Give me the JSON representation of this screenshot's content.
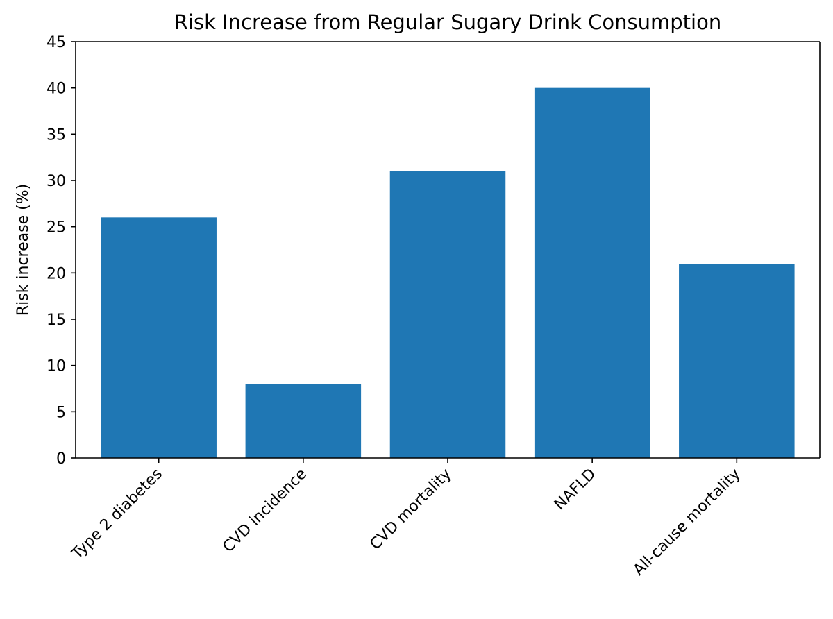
{
  "chart_data": {
    "type": "bar",
    "title": "Risk Increase from Regular Sugary Drink Consumption",
    "xlabel": "",
    "ylabel": "Risk increase (%)",
    "ylim": [
      0,
      45
    ],
    "yticks": [
      0,
      5,
      10,
      15,
      20,
      25,
      30,
      35,
      40,
      45
    ],
    "grid": false,
    "categories": [
      "Type 2 diabetes",
      "CVD incidence",
      "CVD mortality",
      "NAFLD",
      "All-cause mortality"
    ],
    "values": [
      26,
      8,
      31,
      40,
      21
    ],
    "bar_color": "#1f77b4",
    "x_tick_rotation": 45
  }
}
